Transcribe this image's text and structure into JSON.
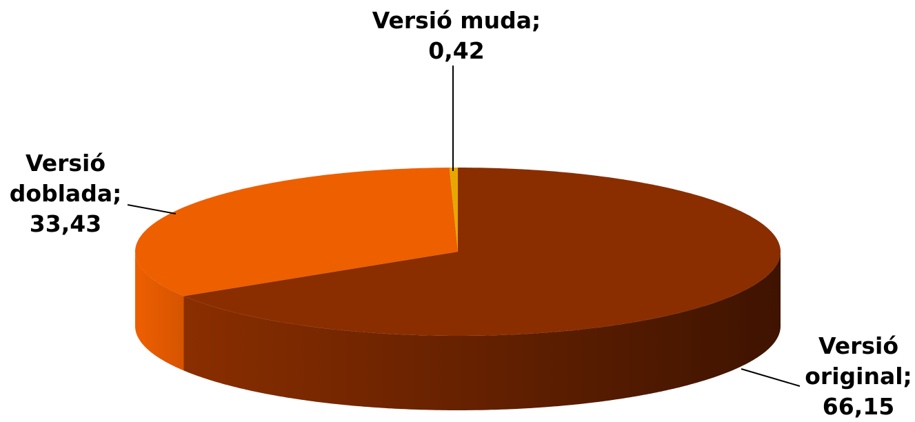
{
  "chart_data": {
    "type": "pie",
    "categories": [
      "Versió original",
      "Versió doblada",
      "Versió muda"
    ],
    "values": [
      66.15,
      33.43,
      0.42
    ],
    "value_labels": [
      "66,15",
      "33,43",
      "0,42"
    ],
    "label_separator": ";",
    "colors": [
      "#8a2e00",
      "#ee5f00",
      "#e6a800"
    ],
    "side_colors": [
      [
        "#8a2e00",
        "#3e1300"
      ],
      [
        "#ee5f00",
        "#d65400"
      ],
      [
        "#e6a800",
        "#c99200"
      ]
    ],
    "three_d": true
  }
}
